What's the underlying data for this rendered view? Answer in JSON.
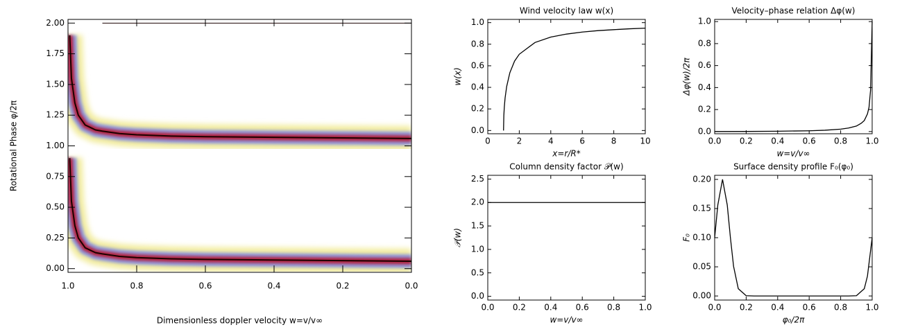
{
  "chart_data": [
    {
      "type": "spectrum",
      "xlabel": "Dimensionless doppler velocity w=v/v∞",
      "ylabel": "Rotational Phase φ/2π",
      "xlim": [
        1.0,
        0.0
      ],
      "ylim": [
        -0.03,
        2.03
      ],
      "xticks": [
        {
          "value": 1,
          "label": "1.0"
        },
        0.8,
        0.6,
        0.4,
        0.2,
        {
          "value": 0,
          "label": "0.0"
        }
      ],
      "yticks": [
        {
          "value": 0,
          "label": "0.00"
        },
        {
          "value": 0.25,
          "label": "0.25"
        },
        {
          "value": 0.5,
          "label": "0.50"
        },
        {
          "value": 0.75,
          "label": "0.75"
        },
        {
          "value": 1,
          "label": "1.00"
        },
        {
          "value": 1.25,
          "label": "1.25"
        },
        {
          "value": 1.5,
          "label": "1.50"
        },
        {
          "value": 1.75,
          "label": "1.75"
        },
        {
          "value": 2,
          "label": "2.00"
        }
      ],
      "colors": [
        "#f2ec9e",
        "#9098dc",
        "#b4203c",
        "#1a0000"
      ],
      "series": [
        {
          "x": [
            0.995,
            0.99,
            0.98,
            0.97,
            0.95,
            0.92,
            0.9,
            0.85,
            0.8,
            0.7,
            0.6,
            0.4,
            0.2,
            0.0
          ],
          "values": [
            0.9,
            0.55,
            0.35,
            0.25,
            0.17,
            0.13,
            0.12,
            0.1,
            0.09,
            0.08,
            0.075,
            0.07,
            0.065,
            0.06
          ]
        },
        {
          "x": [
            0.995,
            0.99,
            0.98,
            0.97,
            0.95,
            0.92,
            0.9,
            0.85,
            0.8,
            0.7,
            0.6,
            0.4,
            0.2,
            0.0
          ],
          "values": [
            1.9,
            1.55,
            1.35,
            1.25,
            1.17,
            1.13,
            1.12,
            1.1,
            1.09,
            1.08,
            1.075,
            1.07,
            1.065,
            1.06
          ]
        },
        {
          "x": [
            0.9,
            0.8,
            0.6,
            0.4,
            0.2,
            0.0
          ],
          "values": [
            2.0,
            2.0,
            2.0,
            2.0,
            2.0,
            2.0
          ]
        }
      ]
    },
    {
      "type": "line",
      "title": "Wind velocity law w(x)",
      "xlabel": "x=r/R*",
      "ylabel": "w(x)",
      "color": "#000000",
      "xlim": [
        0,
        10
      ],
      "ylim": [
        -0.03,
        1.03
      ],
      "xticks": [
        0,
        2,
        4,
        6,
        8,
        10
      ],
      "yticks": [
        {
          "value": 0,
          "label": "0.0"
        },
        0.2,
        0.4,
        0.6,
        0.8,
        {
          "value": 1,
          "label": "1.0"
        }
      ],
      "x": [
        1,
        1.02,
        1.05,
        1.1,
        1.2,
        1.4,
        1.7,
        2,
        3,
        4,
        5,
        6,
        7,
        8,
        9,
        10
      ],
      "values": [
        0,
        0.14,
        0.218,
        0.302,
        0.408,
        0.535,
        0.643,
        0.707,
        0.816,
        0.866,
        0.894,
        0.913,
        0.926,
        0.935,
        0.943,
        0.949
      ]
    },
    {
      "type": "line",
      "title": "Velocity–phase relation Δφ(w)",
      "xlabel": "w=v/v∞",
      "ylabel": "Δφ(w)/2π",
      "color": "#000000",
      "xlim": [
        0,
        1
      ],
      "ylim": [
        -0.02,
        1.02
      ],
      "xticks": [
        {
          "value": 0,
          "label": "0.0"
        },
        0.2,
        0.4,
        0.6,
        0.8,
        {
          "value": 1,
          "label": "1.0"
        }
      ],
      "yticks": [
        {
          "value": 0,
          "label": "0.0"
        },
        0.2,
        0.4,
        0.6,
        0.8,
        {
          "value": 1,
          "label": "1.0"
        }
      ],
      "x": [
        0,
        0.2,
        0.4,
        0.6,
        0.7,
        0.8,
        0.85,
        0.9,
        0.93,
        0.95,
        0.97,
        0.98,
        0.99,
        1.0
      ],
      "values": [
        0,
        0.001,
        0.003,
        0.007,
        0.012,
        0.022,
        0.032,
        0.05,
        0.075,
        0.1,
        0.16,
        0.22,
        0.38,
        1.0
      ]
    },
    {
      "type": "line",
      "title": "Column density factor 𝒫(w)",
      "xlabel": "w=v/v∞",
      "ylabel": "𝒫(w)",
      "color": "#000000",
      "xlim": [
        0,
        1
      ],
      "ylim": [
        -0.08,
        2.58
      ],
      "xticks": [
        {
          "value": 0,
          "label": "0.0"
        },
        0.2,
        0.4,
        0.6,
        0.8,
        {
          "value": 1,
          "label": "1.0"
        }
      ],
      "yticks": [
        {
          "value": 0,
          "label": "0.0"
        },
        0.5,
        {
          "value": 1,
          "label": "1.0"
        },
        1.5,
        {
          "value": 2,
          "label": "2.0"
        },
        2.5
      ],
      "x": [
        0,
        1
      ],
      "values": [
        2,
        2
      ]
    },
    {
      "type": "line",
      "title": "Surface density profile F₀(φ₀)",
      "xlabel": "φ₀/2π",
      "ylabel": "F₀",
      "color": "#000000",
      "xlim": [
        0,
        1
      ],
      "ylim": [
        -0.007,
        0.207
      ],
      "xticks": [
        {
          "value": 0,
          "label": "0.0"
        },
        0.2,
        0.4,
        0.6,
        0.8,
        {
          "value": 1,
          "label": "1.0"
        }
      ],
      "yticks": [
        {
          "value": 0,
          "label": "0.00"
        },
        0.05,
        {
          "value": 0.1,
          "label": "0.10"
        },
        0.15,
        {
          "value": 0.2,
          "label": "0.20"
        }
      ],
      "x": [
        0,
        0.02,
        0.05,
        0.08,
        0.1,
        0.12,
        0.15,
        0.2,
        0.25,
        0.5,
        0.85,
        0.9,
        0.95,
        0.97,
        1.0
      ],
      "values": [
        0.1,
        0.156,
        0.2,
        0.156,
        0.1,
        0.051,
        0.0125,
        0.0004,
        0,
        0,
        0,
        0.0004,
        0.0125,
        0.034,
        0.1
      ]
    }
  ]
}
